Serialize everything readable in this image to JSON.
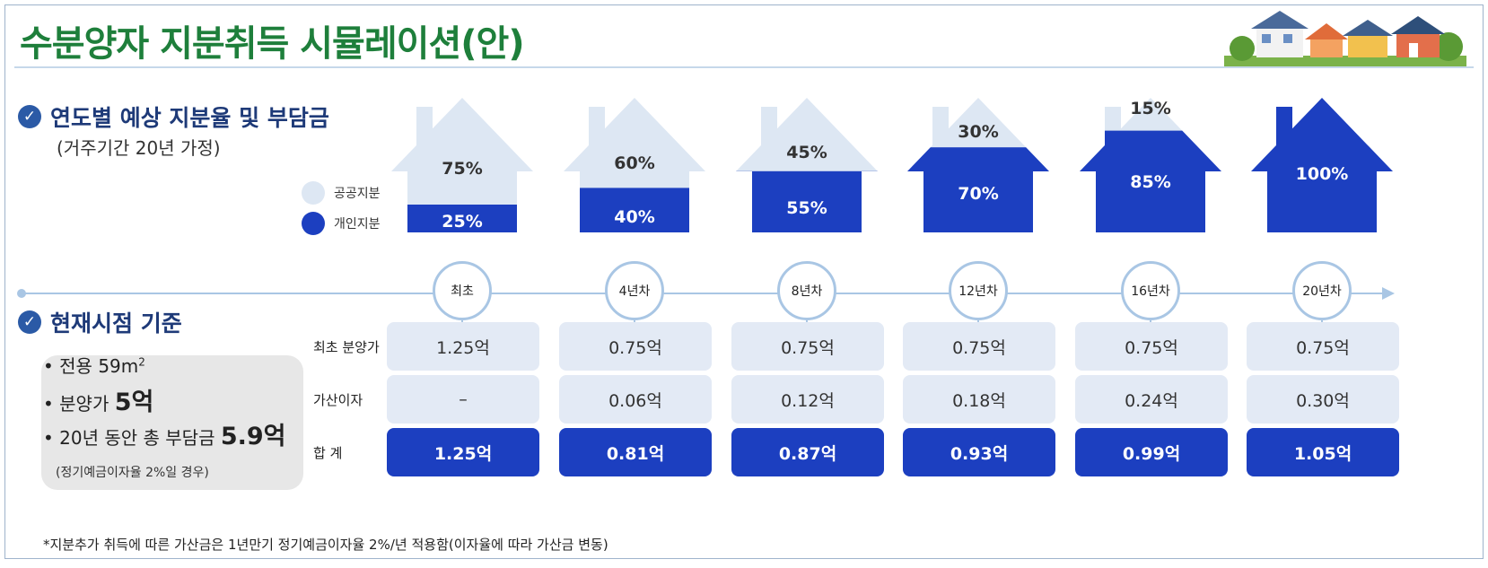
{
  "title": "수분양자 지분취득 시뮬레이션(안)",
  "section1": {
    "title": "연도별 예상 지분율 및 부담금",
    "subtitle": "(거주기간 20년 가정)"
  },
  "legend": {
    "public_label": "공공지분",
    "private_label": "개인지분"
  },
  "colors": {
    "public": "#dde7f3",
    "private": "#1c3fc0",
    "accent_green": "#1e7f3b",
    "timeline": "#a9c6e4"
  },
  "houses": [
    {
      "public": "75%",
      "private": "25%",
      "private_ratio": 0.25
    },
    {
      "public": "60%",
      "private": "40%",
      "private_ratio": 0.4
    },
    {
      "public": "45%",
      "private": "55%",
      "private_ratio": 0.55
    },
    {
      "public": "30%",
      "private": "70%",
      "private_ratio": 0.7
    },
    {
      "public": "15%",
      "private": "85%",
      "private_ratio": 0.85
    },
    {
      "public": "",
      "private": "100%",
      "private_ratio": 1.0
    }
  ],
  "timeline": [
    "최초",
    "4년차",
    "8년차",
    "12년차",
    "16년차",
    "20년차"
  ],
  "section2": {
    "title": "현재시점 기준"
  },
  "info": {
    "area_label": "전용 59m",
    "area_sup": "2",
    "price_label": "분양가 ",
    "price_value": "5억",
    "total_label": "20년 동안 총 부담금 ",
    "total_value": "5.9억",
    "note": "(정기예금이자율 2%일 경우)"
  },
  "rows": {
    "initial_label": "최초 분양가",
    "interest_label": "가산이자",
    "total_label": "합 계"
  },
  "table": {
    "initial": [
      "1.25억",
      "0.75억",
      "0.75억",
      "0.75억",
      "0.75억",
      "0.75억"
    ],
    "interest": [
      "–",
      "0.06억",
      "0.12억",
      "0.18억",
      "0.24억",
      "0.30억"
    ],
    "total": [
      "1.25억",
      "0.81억",
      "0.87억",
      "0.93억",
      "0.99억",
      "1.05억"
    ]
  },
  "footnote": "*지분추가 취득에 따른 가산금은 1년만기 정기예금이자율  2%/년 적용함(이자율에 따라 가산금 변동)"
}
